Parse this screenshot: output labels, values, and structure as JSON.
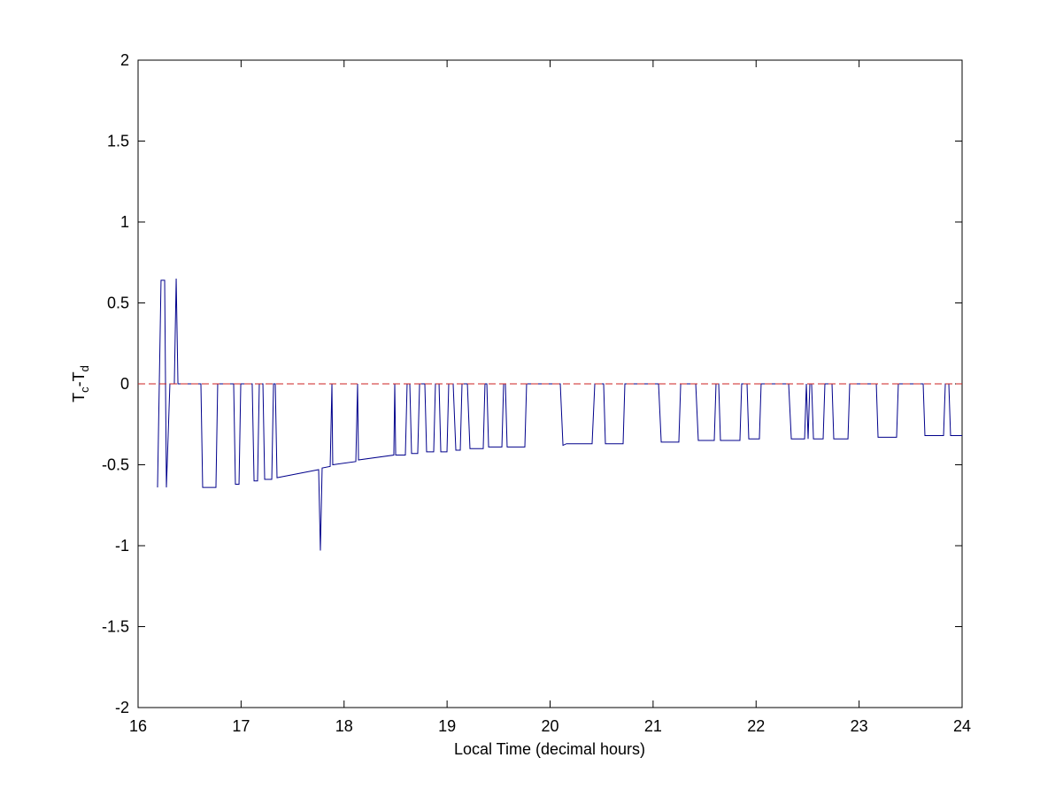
{
  "chart_data": {
    "type": "line",
    "xlabel": "Local Time (decimal hours)",
    "ylabel": [
      "T",
      "c",
      "-T",
      "d"
    ],
    "xlim": [
      16,
      24
    ],
    "ylim": [
      -2,
      2
    ],
    "xticks": [
      16,
      17,
      18,
      19,
      20,
      21,
      22,
      23,
      24
    ],
    "yticks": [
      -2,
      -1.5,
      -1,
      -0.5,
      0,
      0.5,
      1,
      1.5,
      2
    ],
    "grid": false,
    "series": [
      {
        "color": "#00008b",
        "linestyle": "solid",
        "x": [
          16.189,
          16.223,
          16.258,
          16.275,
          16.309,
          16.352,
          16.37,
          16.387,
          16.61,
          16.627,
          16.756,
          16.773,
          16.928,
          16.945,
          16.98,
          16.997,
          17.108,
          17.126,
          17.16,
          17.177,
          17.212,
          17.229,
          17.298,
          17.315,
          17.332,
          17.349,
          17.753,
          17.77,
          17.787,
          17.865,
          17.882,
          17.89,
          18.114,
          18.131,
          18.14,
          18.483,
          18.492,
          18.501,
          18.595,
          18.612,
          18.638,
          18.655,
          18.715,
          18.733,
          18.784,
          18.801,
          18.87,
          18.887,
          18.922,
          18.939,
          18.999,
          19.016,
          19.059,
          19.085,
          19.128,
          19.145,
          19.197,
          19.222,
          19.351,
          19.368,
          19.386,
          19.403,
          19.532,
          19.549,
          19.566,
          19.583,
          19.755,
          19.772,
          20.099,
          20.125,
          20.159,
          20.408,
          20.434,
          20.52,
          20.537,
          20.709,
          20.726,
          21.053,
          21.079,
          21.25,
          21.268,
          21.414,
          21.439,
          21.594,
          21.611,
          21.637,
          21.654,
          21.843,
          21.86,
          21.912,
          21.929,
          22.032,
          22.049,
          22.316,
          22.342,
          22.471,
          22.488,
          22.505,
          22.522,
          22.539,
          22.557,
          22.651,
          22.668,
          22.737,
          22.754,
          22.892,
          22.909,
          23.167,
          23.184,
          23.364,
          23.381,
          23.622,
          23.639,
          23.82,
          23.837,
          23.871,
          23.888,
          24
        ],
        "values": [
          -0.64,
          0.64,
          0.64,
          -0.64,
          0,
          0,
          0.65,
          0,
          0,
          -0.64,
          -0.64,
          0,
          0,
          -0.62,
          -0.62,
          0,
          0,
          -0.6,
          -0.6,
          0,
          0,
          -0.59,
          -0.59,
          0,
          0,
          -0.58,
          -0.53,
          -1.03,
          -0.52,
          -0.51,
          0,
          -0.5,
          -0.48,
          0,
          -0.47,
          -0.44,
          0,
          -0.44,
          -0.44,
          0,
          0,
          -0.43,
          -0.43,
          0,
          0,
          -0.42,
          -0.42,
          0,
          0,
          -0.42,
          -0.42,
          0,
          0,
          -0.41,
          -0.41,
          0,
          0,
          -0.4,
          -0.4,
          0,
          0,
          -0.39,
          -0.39,
          0,
          0,
          -0.39,
          -0.39,
          0,
          0,
          -0.38,
          -0.37,
          -0.37,
          0,
          0,
          -0.37,
          -0.37,
          0,
          0,
          -0.36,
          -0.36,
          0,
          0,
          -0.35,
          -0.35,
          0,
          0,
          -0.35,
          -0.35,
          0,
          0,
          -0.34,
          -0.34,
          0,
          0,
          -0.34,
          -0.34,
          0,
          -0.34,
          0,
          0,
          -0.34,
          -0.34,
          0,
          0,
          -0.34,
          -0.34,
          0,
          0,
          -0.33,
          -0.33,
          0,
          0,
          -0.32,
          -0.32,
          0,
          0,
          -0.32,
          -0.32
        ]
      },
      {
        "color": "#cc2020",
        "linestyle": "dashed",
        "x": [
          16,
          24
        ],
        "values": [
          0,
          0
        ]
      }
    ]
  }
}
